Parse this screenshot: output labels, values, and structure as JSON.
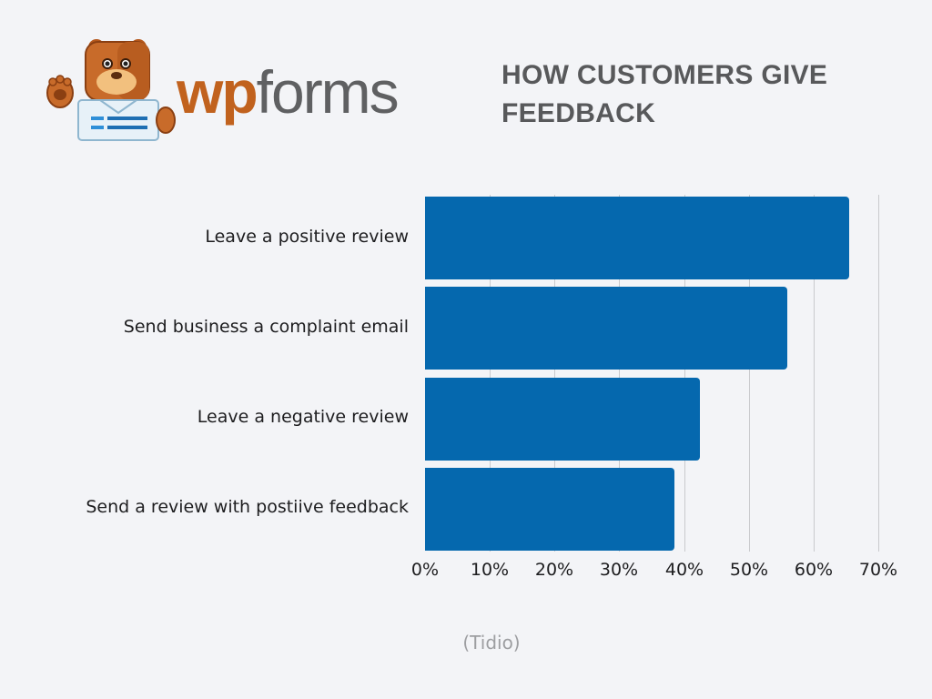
{
  "brand": {
    "logo_text_part1": "wp",
    "logo_text_part2": "forms",
    "mascot": "bear-mascot-icon",
    "colors": {
      "wp": "#c1621e",
      "forms": "#5f6062"
    }
  },
  "header": {
    "title": "HOW CUSTOMERS GIVE FEEDBACK"
  },
  "chart_data": {
    "type": "bar",
    "orientation": "horizontal",
    "title": "HOW CUSTOMERS GIVE FEEDBACK",
    "categories": [
      "Leave a positive review",
      "Send business a complaint email",
      "Leave a negative review",
      "Send a review with postiive feedback"
    ],
    "values": [
      65.5,
      56,
      42.5,
      38.5
    ],
    "unit": "%",
    "xlabel": "",
    "ylabel": "",
    "xlim": [
      0,
      70
    ],
    "x_ticks": [
      "0%",
      "10%",
      "20%",
      "30%",
      "40%",
      "50%",
      "60%",
      "70%"
    ],
    "grid": true,
    "bar_color": "#0568ae",
    "legend": null,
    "source": "(Tidio)"
  },
  "footer": {
    "source": "(Tidio)"
  }
}
